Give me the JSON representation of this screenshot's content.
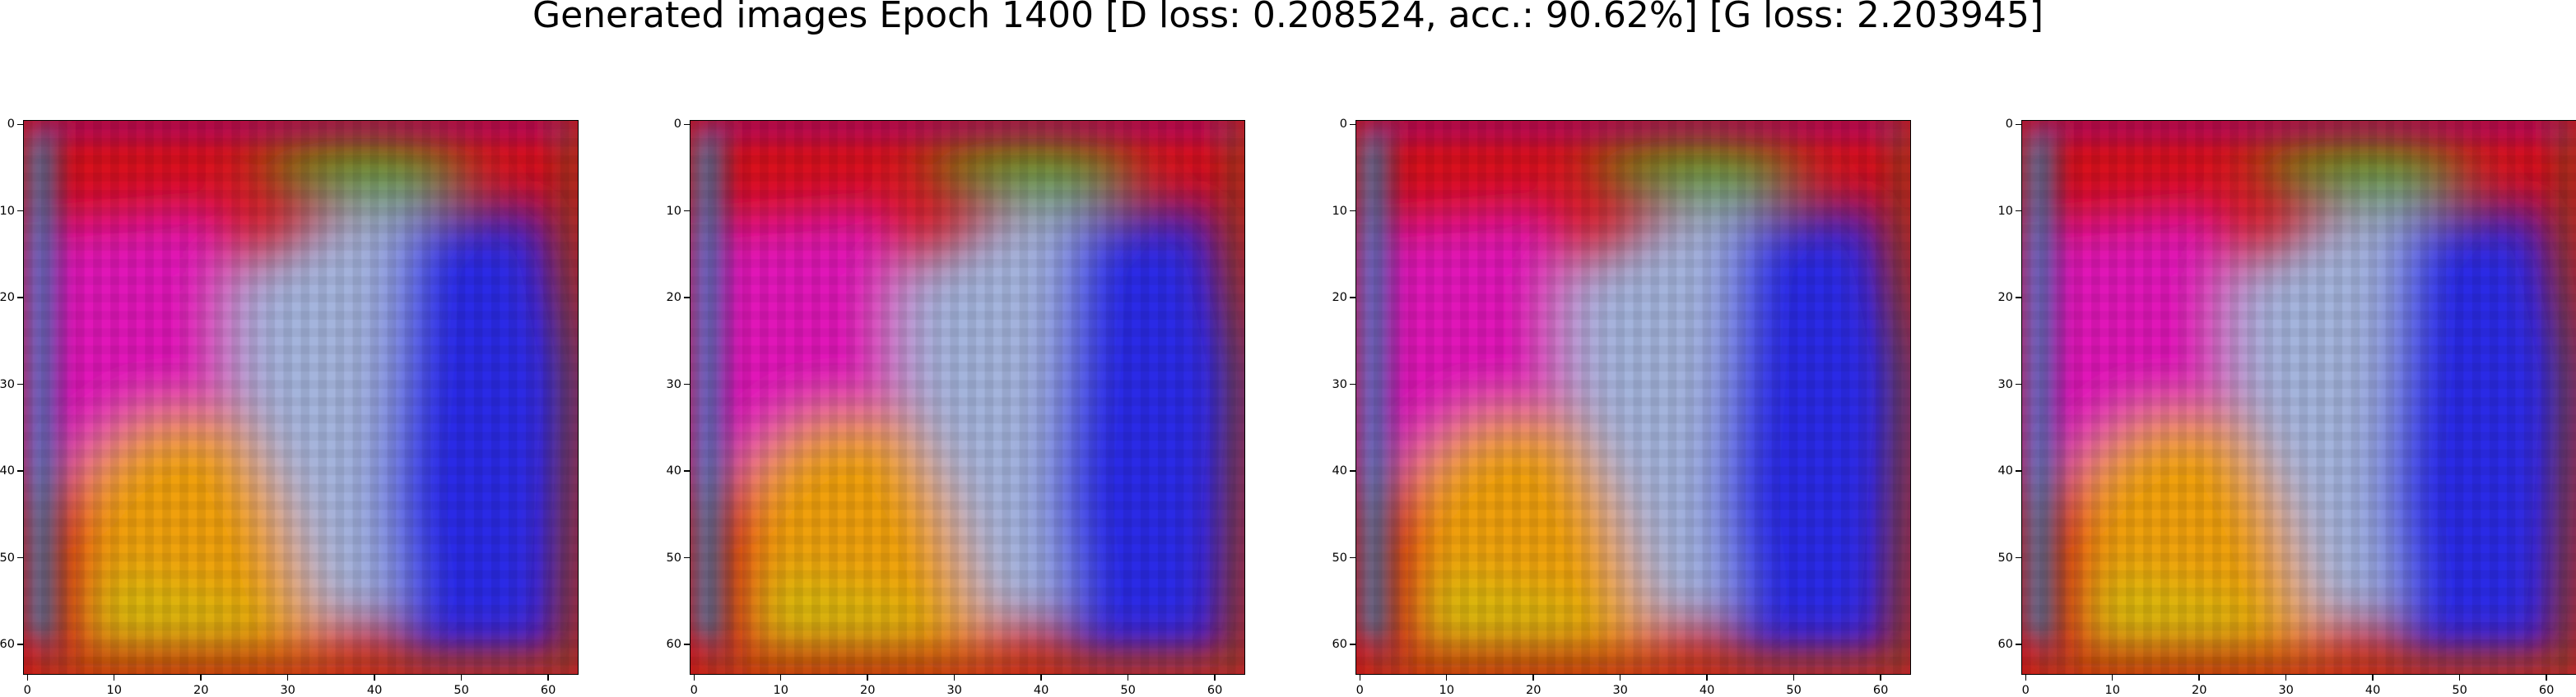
{
  "figure": {
    "title": "Generated images Epoch 1400 [D loss: 0.208524, acc.: 90.62%] [G loss: 2.203945]"
  },
  "panels": [
    {
      "image": "generated-sample-1"
    },
    {
      "image": "generated-sample-2"
    },
    {
      "image": "generated-sample-3"
    },
    {
      "image": "generated-sample-4"
    }
  ],
  "axes": {
    "x_ticks": [
      "0",
      "10",
      "20",
      "30",
      "40",
      "50",
      "60"
    ],
    "y_ticks": [
      "0",
      "10",
      "20",
      "30",
      "40",
      "50",
      "60"
    ],
    "range": [
      0,
      64
    ]
  },
  "colors": {
    "red": "#d8101a",
    "magenta": "#e018b8",
    "blue": "#2a2ae6",
    "green": "#5aa00e",
    "orange": "#f0a010",
    "pale_blue": "#a4b4dc",
    "cyan": "#18b4f0"
  }
}
